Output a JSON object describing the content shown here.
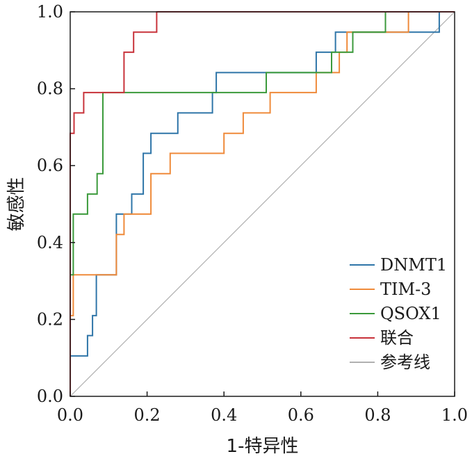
{
  "chart_data": {
    "type": "line",
    "title": "",
    "xlabel": "1-特异性",
    "ylabel": "敏感性",
    "xlim": [
      0,
      1
    ],
    "ylim": [
      0,
      1
    ],
    "xticks": [
      0.0,
      0.2,
      0.4,
      0.6,
      0.8,
      1.0
    ],
    "yticks": [
      0.0,
      0.2,
      0.4,
      0.6,
      0.8,
      1.0
    ],
    "xtick_labels": [
      "0.0",
      "0.2",
      "0.4",
      "0.6",
      "0.8",
      "1.0"
    ],
    "ytick_labels": [
      "0.0",
      "0.2",
      "0.4",
      "0.6",
      "0.8",
      "1.0"
    ],
    "grid": false,
    "legend_position": "bottom-right",
    "series": [
      {
        "name": "DNMT1",
        "color": "#2e75a8",
        "x": [
          0.0,
          0.0,
          0.045,
          0.045,
          0.058,
          0.058,
          0.068,
          0.068,
          0.068,
          0.068,
          0.068,
          0.12,
          0.12,
          0.15,
          0.15,
          0.16,
          0.16,
          0.19,
          0.19,
          0.2,
          0.2,
          0.21,
          0.21,
          0.28,
          0.28,
          0.37,
          0.37,
          0.38,
          0.38,
          0.64,
          0.64,
          0.68,
          0.68,
          0.69,
          0.69,
          0.72,
          0.72,
          0.96,
          0.96,
          1.0
        ],
        "y": [
          0.0,
          0.105,
          0.105,
          0.158,
          0.158,
          0.21,
          0.21,
          0.265,
          0.265,
          0.316,
          0.316,
          0.316,
          0.474,
          0.474,
          0.474,
          0.474,
          0.526,
          0.526,
          0.632,
          0.632,
          0.632,
          0.632,
          0.684,
          0.684,
          0.737,
          0.737,
          0.79,
          0.79,
          0.842,
          0.842,
          0.895,
          0.895,
          0.895,
          0.895,
          0.947,
          0.947,
          0.947,
          0.947,
          1.0,
          1.0
        ]
      },
      {
        "name": "TIM-3",
        "color": "#ef8a3a",
        "x": [
          0.0,
          0.0,
          0.008,
          0.008,
          0.12,
          0.12,
          0.14,
          0.14,
          0.21,
          0.21,
          0.26,
          0.26,
          0.4,
          0.4,
          0.44,
          0.44,
          0.45,
          0.45,
          0.52,
          0.52,
          0.64,
          0.64,
          0.7,
          0.7,
          0.72,
          0.72,
          0.82,
          0.82,
          0.88,
          0.88,
          1.0
        ],
        "y": [
          0.0,
          0.21,
          0.21,
          0.316,
          0.316,
          0.421,
          0.421,
          0.474,
          0.474,
          0.579,
          0.579,
          0.632,
          0.632,
          0.684,
          0.684,
          0.684,
          0.684,
          0.737,
          0.737,
          0.79,
          0.79,
          0.842,
          0.842,
          0.895,
          0.895,
          0.947,
          0.947,
          0.947,
          0.947,
          1.0,
          1.0
        ]
      },
      {
        "name": "QSOX1",
        "color": "#3b9a3b",
        "x": [
          0.0,
          0.0,
          0.008,
          0.008,
          0.045,
          0.045,
          0.07,
          0.07,
          0.085,
          0.085,
          0.51,
          0.51,
          0.68,
          0.68,
          0.735,
          0.735,
          0.81,
          0.81,
          0.82,
          0.82,
          1.0
        ],
        "y": [
          0.0,
          0.316,
          0.316,
          0.474,
          0.474,
          0.526,
          0.526,
          0.579,
          0.579,
          0.79,
          0.79,
          0.842,
          0.842,
          0.895,
          0.895,
          0.947,
          0.947,
          0.947,
          0.947,
          1.0,
          1.0
        ]
      },
      {
        "name": "联合",
        "color": "#c8323a",
        "x": [
          0.0,
          0.0,
          0.01,
          0.01,
          0.035,
          0.035,
          0.14,
          0.14,
          0.165,
          0.165,
          0.225,
          0.225,
          1.0
        ],
        "y": [
          0.0,
          0.684,
          0.684,
          0.737,
          0.737,
          0.79,
          0.79,
          0.895,
          0.895,
          0.947,
          0.947,
          1.0,
          1.0
        ]
      },
      {
        "name": "参考线",
        "color": "#b0b0b0",
        "x": [
          0.0,
          1.0
        ],
        "y": [
          0.0,
          1.0
        ]
      }
    ]
  }
}
